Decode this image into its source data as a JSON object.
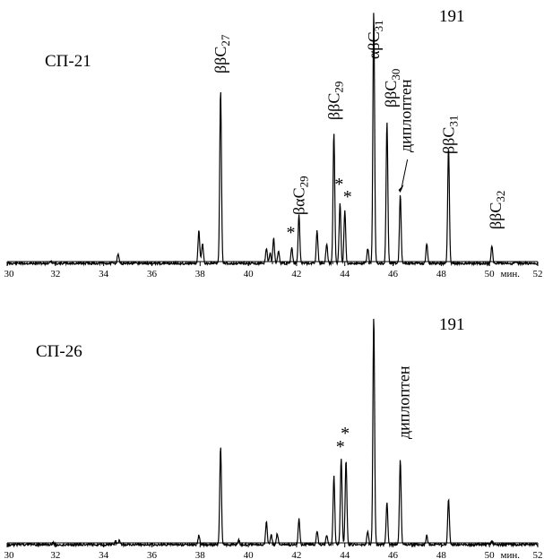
{
  "chart_data": [
    {
      "type": "line",
      "sample": "СП-21",
      "ion": "191",
      "xlim": [
        30,
        52
      ],
      "x_ticks": [
        30,
        32,
        34,
        36,
        38,
        40,
        42,
        44,
        46,
        48,
        50,
        52
      ],
      "x_unit": "мин.",
      "peaks": [
        {
          "x": 31.8,
          "h": 0.01
        },
        {
          "x": 34.6,
          "h": 0.04
        },
        {
          "x": 37.95,
          "h": 0.13
        },
        {
          "x": 38.1,
          "h": 0.08
        },
        {
          "x": 38.85,
          "h": 0.69
        },
        {
          "x": 40.75,
          "h": 0.06
        },
        {
          "x": 40.9,
          "h": 0.04
        },
        {
          "x": 41.05,
          "h": 0.1
        },
        {
          "x": 41.25,
          "h": 0.05
        },
        {
          "x": 41.8,
          "h": 0.06
        },
        {
          "x": 42.1,
          "h": 0.19
        },
        {
          "x": 42.85,
          "h": 0.13
        },
        {
          "x": 43.25,
          "h": 0.08
        },
        {
          "x": 43.55,
          "h": 0.52
        },
        {
          "x": 43.8,
          "h": 0.24
        },
        {
          "x": 44.0,
          "h": 0.21
        },
        {
          "x": 44.95,
          "h": 0.06
        },
        {
          "x": 45.2,
          "h": 1.0
        },
        {
          "x": 45.75,
          "h": 0.56
        },
        {
          "x": 46.3,
          "h": 0.27
        },
        {
          "x": 47.4,
          "h": 0.08
        },
        {
          "x": 48.3,
          "h": 0.46
        },
        {
          "x": 50.1,
          "h": 0.07
        }
      ],
      "annotations": [
        {
          "text": "ββC27",
          "x": 38.85
        },
        {
          "text": "βαC29",
          "x": 42.1
        },
        {
          "text": "ββC29",
          "x": 43.55
        },
        {
          "text": "αβC31",
          "x": 45.2
        },
        {
          "text": "ββC30",
          "x": 45.75
        },
        {
          "text": "диплоптен",
          "x": 46.3
        },
        {
          "text": "ββC31",
          "x": 48.3
        },
        {
          "text": "ββC32",
          "x": 50.1
        }
      ],
      "asterisks": [
        41.8,
        43.8,
        44.0
      ]
    },
    {
      "type": "line",
      "sample": "СП-26",
      "ion": "191",
      "xlim": [
        30,
        52
      ],
      "x_ticks": [
        30,
        32,
        34,
        36,
        38,
        40,
        42,
        44,
        46,
        48,
        50,
        52
      ],
      "x_unit": "мин.",
      "peaks": [
        {
          "x": 31.9,
          "h": 0.01
        },
        {
          "x": 34.5,
          "h": 0.015
        },
        {
          "x": 34.65,
          "h": 0.02
        },
        {
          "x": 37.95,
          "h": 0.04
        },
        {
          "x": 38.85,
          "h": 0.43
        },
        {
          "x": 39.6,
          "h": 0.02
        },
        {
          "x": 40.75,
          "h": 0.1
        },
        {
          "x": 40.95,
          "h": 0.04
        },
        {
          "x": 41.2,
          "h": 0.05
        },
        {
          "x": 42.1,
          "h": 0.11
        },
        {
          "x": 42.85,
          "h": 0.06
        },
        {
          "x": 43.25,
          "h": 0.04
        },
        {
          "x": 43.55,
          "h": 0.3
        },
        {
          "x": 43.85,
          "h": 0.38
        },
        {
          "x": 44.05,
          "h": 0.37
        },
        {
          "x": 44.95,
          "h": 0.06
        },
        {
          "x": 45.2,
          "h": 1.0
        },
        {
          "x": 45.75,
          "h": 0.18
        },
        {
          "x": 46.3,
          "h": 0.37
        },
        {
          "x": 47.4,
          "h": 0.04
        },
        {
          "x": 48.3,
          "h": 0.2
        },
        {
          "x": 50.1,
          "h": 0.015
        }
      ],
      "annotations": [
        {
          "text": "диплоптен",
          "x": 46.3
        }
      ],
      "asterisks": [
        43.85,
        44.05
      ]
    }
  ]
}
